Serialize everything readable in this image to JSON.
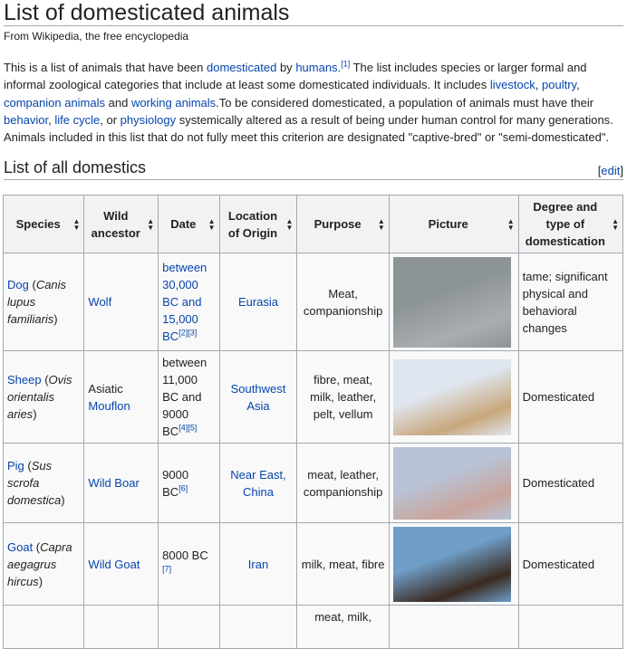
{
  "title": "List of domesticated animals",
  "subtitle": "From Wikipedia, the free encyclopedia",
  "intro": [
    {
      "t": "This is a list of animals that have been "
    },
    {
      "t": "domesticated",
      "link": true
    },
    {
      "t": " by "
    },
    {
      "t": "humans",
      "link": true
    },
    {
      "t": ".",
      "link": true
    },
    {
      "t": "[1]",
      "sup": true,
      "link": true
    },
    {
      "t": " The list includes species or larger formal and informal zoological categories that include at least some domesticated individuals. It includes "
    },
    {
      "t": "livestock",
      "link": true
    },
    {
      "t": ", "
    },
    {
      "t": "poultry",
      "link": true
    },
    {
      "t": ", "
    },
    {
      "t": "companion animals",
      "link": true
    },
    {
      "t": " and "
    },
    {
      "t": "working animals",
      "link": true
    },
    {
      "t": ".To be considered domesticated, a population of animals must have their "
    },
    {
      "t": "behavior",
      "link": true
    },
    {
      "t": ", "
    },
    {
      "t": "life cycle",
      "link": true
    },
    {
      "t": ", or "
    },
    {
      "t": "physiology",
      "link": true
    },
    {
      "t": " systemically altered as a result of being under human control for many generations. Animals included in this list that do not fully meet this criterion are designated \"captive-bred\" or \"semi-domesticated\"."
    }
  ],
  "section": {
    "title": "List of all domestics",
    "edit_label": "edit"
  },
  "table": {
    "headers": [
      "Species",
      "Wild ancestor",
      "Date",
      "Location of Origin",
      "Purpose",
      "Picture",
      "Degree and type of domestication"
    ],
    "rows": [
      {
        "species": [
          {
            "t": "Dog",
            "link": true
          },
          {
            "t": " ("
          },
          {
            "t": "Canis lupus familiaris",
            "i": true
          },
          {
            "t": ")"
          }
        ],
        "ancestor": [
          {
            "t": "Wolf",
            "link": true
          }
        ],
        "date": [
          {
            "t": "between 30,000 BC and 15,000 BC",
            "link": true
          },
          {
            "t": "[2]",
            "sup": true,
            "link": true
          },
          {
            "t": "[3]",
            "sup": true,
            "link": true
          }
        ],
        "origin": [
          {
            "t": "Eurasia",
            "link": true
          }
        ],
        "purpose": "Meat, companionship",
        "picture": "dog-photo",
        "pic_colors": [
          "#8d9497",
          "#a9adb0"
        ],
        "degree": "tame; significant physical and behavioral changes"
      },
      {
        "species": [
          {
            "t": "Sheep",
            "link": true
          },
          {
            "t": " ("
          },
          {
            "t": "Ovis orientalis aries",
            "i": true
          },
          {
            "t": ")"
          }
        ],
        "ancestor": [
          {
            "t": "Asiatic "
          },
          {
            "t": "Mouflon",
            "link": true
          }
        ],
        "date": [
          {
            "t": "between 11,000 BC and 9000 BC"
          },
          {
            "t": "[4]",
            "sup": true,
            "link": true
          },
          {
            "t": "[5]",
            "sup": true,
            "link": true
          }
        ],
        "origin": [
          {
            "t": "Southwest Asia",
            "link": true
          }
        ],
        "purpose": "fibre, meat, milk, leather, pelt, vellum",
        "picture": "sheep-photo",
        "pic_colors": [
          "#dfe6ef",
          "#c8a77c"
        ],
        "degree": "Domesticated"
      },
      {
        "species": [
          {
            "t": "Pig",
            "link": true
          },
          {
            "t": " ("
          },
          {
            "t": "Sus scrofa domestica",
            "i": true
          },
          {
            "t": ")"
          }
        ],
        "ancestor": [
          {
            "t": "Wild Boar",
            "link": true
          }
        ],
        "date": [
          {
            "t": "9000 BC"
          },
          {
            "t": "[6]",
            "sup": true,
            "link": true
          }
        ],
        "origin": [
          {
            "t": "Near East, China",
            "link": true
          }
        ],
        "purpose": "meat, leather, companionship",
        "picture": "pig-photo",
        "pic_colors": [
          "#b8c3d6",
          "#c9a59c"
        ],
        "degree": "Domesticated"
      },
      {
        "species": [
          {
            "t": "Goat",
            "link": true
          },
          {
            "t": " ("
          },
          {
            "t": "Capra aegagrus hircus",
            "i": true
          },
          {
            "t": ")"
          }
        ],
        "ancestor": [
          {
            "t": "Wild Goat",
            "link": true
          }
        ],
        "date": [
          {
            "t": "8000 BC "
          },
          {
            "t": "[7]",
            "sup": true,
            "link": true
          }
        ],
        "origin": [
          {
            "t": "Iran",
            "link": true
          }
        ],
        "purpose": "milk, meat, fibre",
        "picture": "goat-photo",
        "pic_colors": [
          "#6f9fc8",
          "#3a2a20"
        ],
        "degree": "Domesticated"
      },
      {
        "species": [],
        "ancestor": [],
        "date": [],
        "origin": [],
        "purpose": "meat, milk,",
        "picture": "",
        "degree": ""
      }
    ]
  }
}
